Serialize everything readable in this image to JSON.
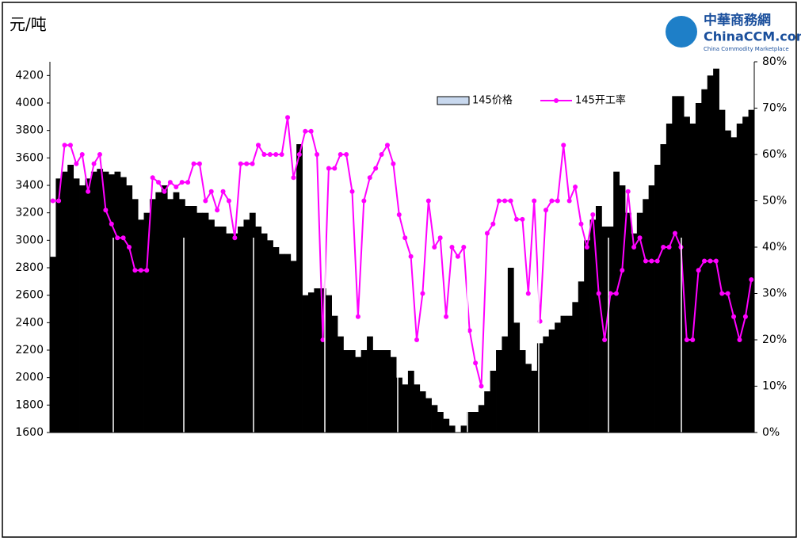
{
  "chart_data": {
    "type": "bar-line",
    "y_label": "元/吨",
    "logo": {
      "name": "中華商務網",
      "site": "ChinaCCM.com",
      "tagline": "China Commodity Marketplace"
    },
    "categories": [
      null,
      null,
      null,
      null,
      null,
      null,
      null,
      null,
      null,
      null,
      null,
      null,
      null,
      null,
      null,
      null,
      null,
      null,
      null,
      null,
      null,
      null,
      null,
      null,
      null,
      null,
      null,
      null,
      null,
      null,
      null,
      null,
      null,
      null,
      null,
      null,
      null,
      null,
      null,
      null,
      null,
      null,
      null,
      null,
      null,
      null,
      null,
      null,
      null,
      null,
      null,
      null,
      null,
      null,
      null,
      null,
      null,
      null,
      null,
      null,
      null,
      null,
      null,
      null,
      null,
      null,
      null,
      null,
      null,
      null,
      null,
      null,
      null,
      null,
      null,
      null,
      null,
      null,
      null,
      null,
      null,
      null,
      null,
      null,
      null,
      null,
      null,
      null,
      null,
      null,
      null,
      null,
      null,
      null,
      null,
      null,
      null,
      null,
      null,
      null,
      null,
      null,
      null,
      null,
      null,
      null,
      null,
      null,
      null,
      null,
      null,
      null,
      null,
      null,
      null,
      null,
      null,
      null,
      null,
      null
    ],
    "series": [
      {
        "name": "145价格",
        "kind": "bar",
        "color": "#000000",
        "values": [
          2880,
          3450,
          3500,
          3550,
          3450,
          3400,
          3450,
          3500,
          3520,
          3500,
          3480,
          3500,
          3460,
          3400,
          3300,
          3150,
          3200,
          3300,
          3350,
          3400,
          3300,
          3350,
          3300,
          3250,
          3250,
          3200,
          3200,
          3150,
          3100,
          3100,
          3050,
          3050,
          3100,
          3150,
          3200,
          3100,
          3050,
          3000,
          2950,
          2900,
          2900,
          2850,
          3700,
          2600,
          2620,
          2650,
          2650,
          2600,
          2450,
          2300,
          2200,
          2200,
          2150,
          2200,
          2300,
          2200,
          2200,
          2200,
          2150,
          2000,
          1950,
          2050,
          1950,
          1900,
          1850,
          1800,
          1750,
          1700,
          1650,
          1600,
          1650,
          1750,
          1750,
          1800,
          1900,
          2050,
          2200,
          2300,
          2800,
          2400,
          2200,
          2100,
          2050,
          2250,
          2300,
          2350,
          2400,
          2450,
          2450,
          2550,
          2700,
          3000,
          3150,
          3250,
          3100,
          3100,
          3500,
          3400,
          3200,
          3050,
          3200,
          3300,
          3400,
          3550,
          3700,
          3850,
          4050,
          4050,
          3900,
          3850,
          4000,
          4100,
          4200,
          4250,
          3950,
          3800,
          3750,
          3850,
          3900,
          3950
        ]
      },
      {
        "name": "145开工率",
        "kind": "line",
        "axis": "y2",
        "color": "#ff00ff",
        "values": [
          50,
          50,
          62,
          62,
          58,
          60,
          52,
          58,
          60,
          48,
          45,
          42,
          42,
          40,
          35,
          35,
          35,
          55,
          54,
          52,
          54,
          53,
          54,
          54,
          58,
          58,
          50,
          52,
          48,
          52,
          50,
          42,
          58,
          58,
          58,
          62,
          60,
          60,
          60,
          60,
          68,
          55,
          60,
          65,
          65,
          60,
          20,
          57,
          57,
          60,
          60,
          52,
          25,
          50,
          55,
          57,
          60,
          62,
          58,
          47,
          42,
          38,
          20,
          30,
          50,
          40,
          42,
          25,
          40,
          38,
          40,
          22,
          15,
          10,
          43,
          45,
          50,
          50,
          50,
          46,
          46,
          30,
          50,
          24,
          48,
          50,
          50,
          62,
          50,
          53,
          45,
          40,
          47,
          30,
          20,
          30,
          30,
          35,
          52,
          40,
          42,
          37,
          37,
          37,
          40,
          40,
          43,
          40,
          20,
          20,
          35,
          37,
          37,
          37,
          30,
          30,
          25,
          20,
          25,
          33
        ]
      }
    ],
    "ylim": [
      1600,
      4300
    ],
    "yticks": [
      1600,
      1800,
      2000,
      2200,
      2400,
      2600,
      2800,
      3000,
      3200,
      3400,
      3600,
      3800,
      4000,
      4200
    ],
    "y2lim": [
      0,
      80
    ],
    "y2ticks": [
      {
        "value": 0,
        "label": "0%"
      },
      {
        "value": 10,
        "label": "10%"
      },
      {
        "value": 20,
        "label": "20%"
      },
      {
        "value": 30,
        "label": "30%"
      },
      {
        "value": 40,
        "label": "40%"
      },
      {
        "value": 50,
        "label": "50%"
      },
      {
        "value": 60,
        "label": "60%"
      },
      {
        "value": 70,
        "label": "70%"
      },
      {
        "value": 80,
        "label": "80%"
      }
    ],
    "legend": "top"
  }
}
